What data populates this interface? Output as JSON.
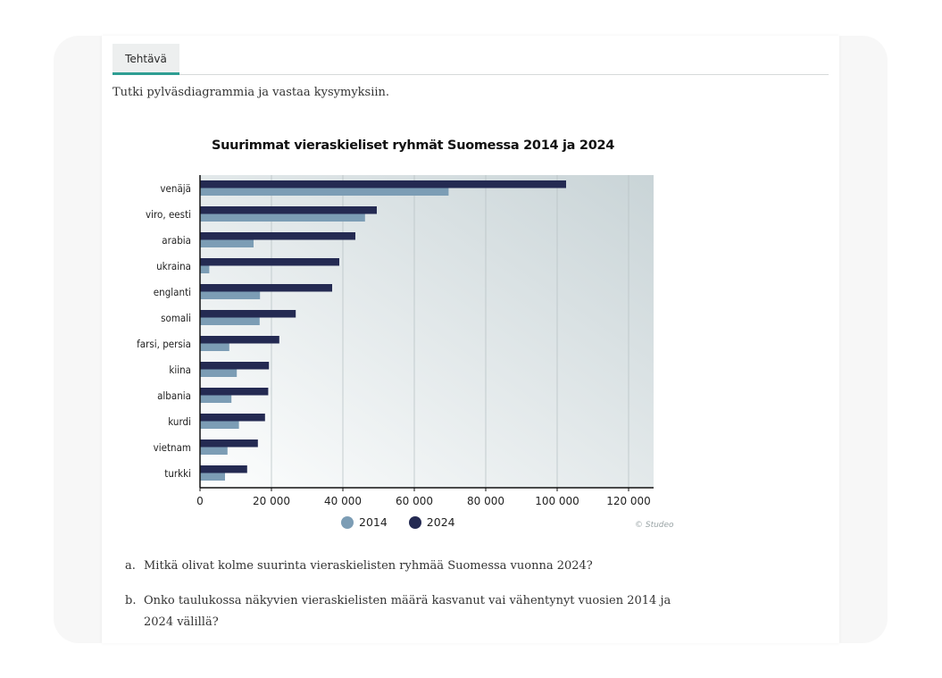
{
  "tab": {
    "label": "Tehtävä"
  },
  "instruction": "Tutki pylväsdiagrammia ja vastaa kysymyksiin.",
  "credit": "© Studeo",
  "questions": [
    {
      "letter": "a.",
      "text": "Mitkä olivat kolme suurinta vieraskielisten ryhmää Suomessa vuonna 2024?"
    },
    {
      "letter": "b.",
      "text": "Onko taulukossa näkyvien vieraskielisten määrä kasvanut vai vähentynyt vuosien 2014 ja 2024 välillä?"
    }
  ],
  "chart_data": {
    "type": "bar",
    "orientation": "horizontal",
    "title": "Suurimmat vieraskieliset ryhmät Suomessa 2014 ja 2024",
    "categories": [
      "venäjä",
      "viro, eesti",
      "arabia",
      "ukraina",
      "englanti",
      "somali",
      "farsi, persia",
      "kiina",
      "albania",
      "kurdi",
      "vietnam",
      "turkki"
    ],
    "series": [
      {
        "name": "2024",
        "color": "#242a52",
        "values": [
          102500,
          49500,
          43500,
          39000,
          37000,
          26800,
          22200,
          19300,
          19100,
          18200,
          16200,
          13200
        ]
      },
      {
        "name": "2014",
        "color": "#7c9db5",
        "values": [
          69600,
          46200,
          15000,
          2600,
          16800,
          16700,
          8200,
          10300,
          8800,
          10900,
          7700,
          7000
        ]
      }
    ],
    "xlim": [
      0,
      127000
    ],
    "xticks": [
      0,
      20000,
      40000,
      60000,
      80000,
      100000,
      120000
    ],
    "xtick_labels": [
      "0",
      "20 000",
      "40 000",
      "60 000",
      "80 000",
      "100 000",
      "120 000"
    ],
    "legend": [
      {
        "label": "2014",
        "color": "#7c9db5"
      },
      {
        "label": "2024",
        "color": "#242a52"
      }
    ],
    "legend_position": "bottom-center",
    "grid": true
  }
}
